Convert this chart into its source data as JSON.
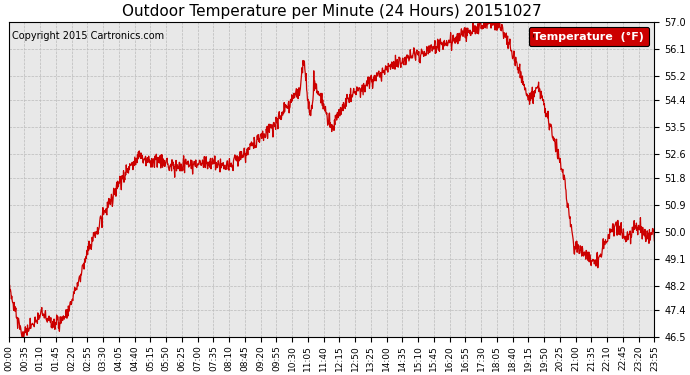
{
  "title": "Outdoor Temperature per Minute (24 Hours) 20151027",
  "copyright": "Copyright 2015 Cartronics.com",
  "legend_label": "Temperature  (°F)",
  "line_color": "#cc0000",
  "background_color": "#ffffff",
  "plot_bg_color": "#e8e8e8",
  "grid_color": "#bbbbbb",
  "ylim": [
    46.5,
    57.0
  ],
  "yticks": [
    46.5,
    47.4,
    48.2,
    49.1,
    50.0,
    50.9,
    51.8,
    52.6,
    53.5,
    54.4,
    55.2,
    56.1,
    57.0
  ],
  "xtick_labels": [
    "00:00",
    "00:35",
    "01:10",
    "01:45",
    "02:20",
    "02:55",
    "03:30",
    "04:05",
    "04:40",
    "05:15",
    "05:50",
    "06:25",
    "07:00",
    "07:35",
    "08:10",
    "08:45",
    "09:20",
    "09:55",
    "10:30",
    "11:05",
    "11:40",
    "12:15",
    "12:50",
    "13:25",
    "14:00",
    "14:35",
    "15:10",
    "15:45",
    "16:20",
    "16:55",
    "17:30",
    "18:05",
    "18:40",
    "19:15",
    "19:50",
    "20:25",
    "21:00",
    "21:35",
    "22:10",
    "22:45",
    "23:20",
    "23:55"
  ],
  "title_fontsize": 11,
  "tick_fontsize": 7,
  "copyright_fontsize": 7,
  "legend_fontsize": 8,
  "line_width": 0.9
}
